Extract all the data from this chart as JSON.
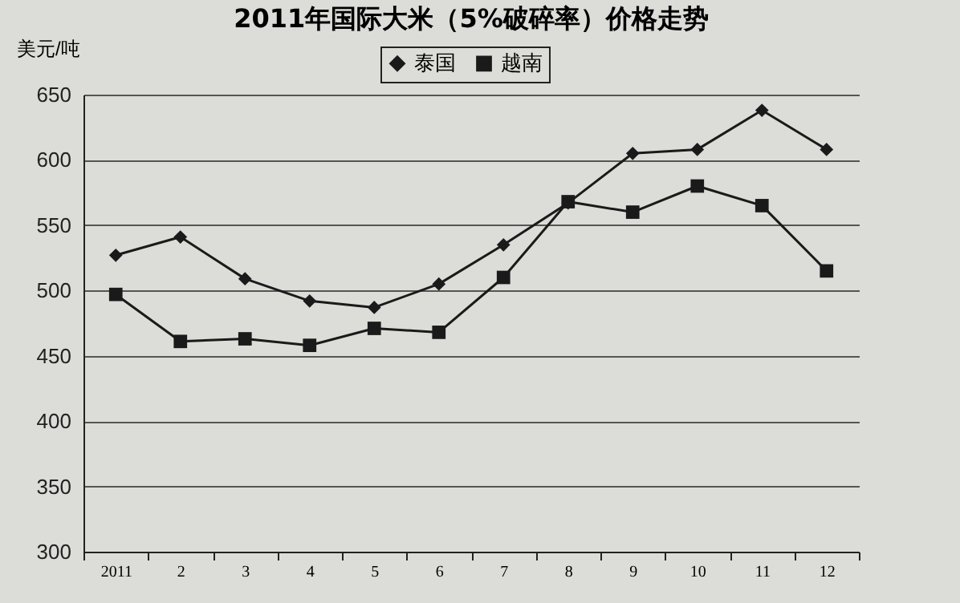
{
  "chart_data": {
    "type": "line",
    "title": "2011年国际大米（5%破碎率）价格走势",
    "ylabel": "美元/吨",
    "categories": [
      "2011",
      "2",
      "3",
      "4",
      "5",
      "6",
      "7",
      "8",
      "9",
      "10",
      "11",
      "12"
    ],
    "series": [
      {
        "name": "泰国",
        "color": "#1a1a1a",
        "marker": "diamond",
        "values": [
          527,
          541,
          509,
          492,
          487,
          505,
          535,
          567,
          605,
          608,
          638,
          608
        ]
      },
      {
        "name": "越南",
        "color": "#1a1a1a",
        "marker": "square",
        "values": [
          497,
          461,
          463,
          458,
          471,
          468,
          510,
          568,
          560,
          580,
          565,
          515
        ]
      }
    ],
    "ylim": [
      300,
      650
    ],
    "yticks": [
      300,
      350,
      400,
      450,
      500,
      550,
      600,
      650
    ],
    "grid": "y",
    "legend": "top"
  }
}
